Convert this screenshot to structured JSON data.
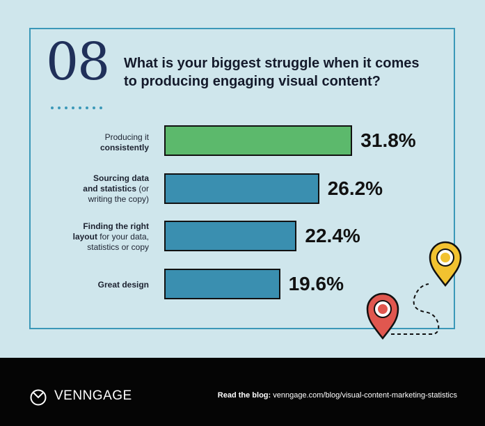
{
  "question_number": "08",
  "title_line1": "What is your biggest struggle when it comes",
  "title_line2": "to producing engaging visual content?",
  "chart_data": {
    "type": "bar",
    "orientation": "horizontal",
    "title": "What is your biggest struggle when it comes to producing engaging visual content?",
    "categories": [
      "Producing it consistently",
      "Sourcing data and statistics (or writing the copy)",
      "Finding the right layout for your data, statistics or copy",
      "Great design"
    ],
    "values": [
      31.8,
      26.2,
      22.4,
      19.6
    ],
    "value_labels": [
      "31.8%",
      "26.2%",
      "22.4%",
      "19.6%"
    ],
    "unit": "%",
    "colors": [
      "#5cb96c",
      "#3a8fb0",
      "#3a8fb0",
      "#3a8fb0"
    ],
    "grid": false,
    "legend": "none"
  },
  "labels": [
    {
      "normal_a": "Producing it",
      "bold_a": "consistently",
      "normal_b": "",
      "bold_b": "",
      "normal_c": ""
    },
    {
      "normal_a": "",
      "bold_a": "Sourcing data",
      "normal_b": "",
      "bold_b": "and statistics",
      "normal_c": " (or",
      "line3": "writing the copy)"
    },
    {
      "bold_a": "Finding the right",
      "bold_b": "layout",
      "normal_b": " for your data,",
      "line3": "statistics or copy"
    },
    {
      "bold_a": "Great design"
    }
  ],
  "footer": {
    "brand": "VENNGAGE",
    "blog_label": "Read the blog:",
    "blog_url": "venngage.com/blog/visual-content-marketing-statistics"
  },
  "colors": {
    "background": "#cfe6ec",
    "frame": "#3b98b8",
    "accent_green": "#5cb96c",
    "accent_blue": "#3a8fb0",
    "pin_yellow": "#f2c230",
    "pin_red": "#e0574f",
    "footer": "#050505"
  }
}
